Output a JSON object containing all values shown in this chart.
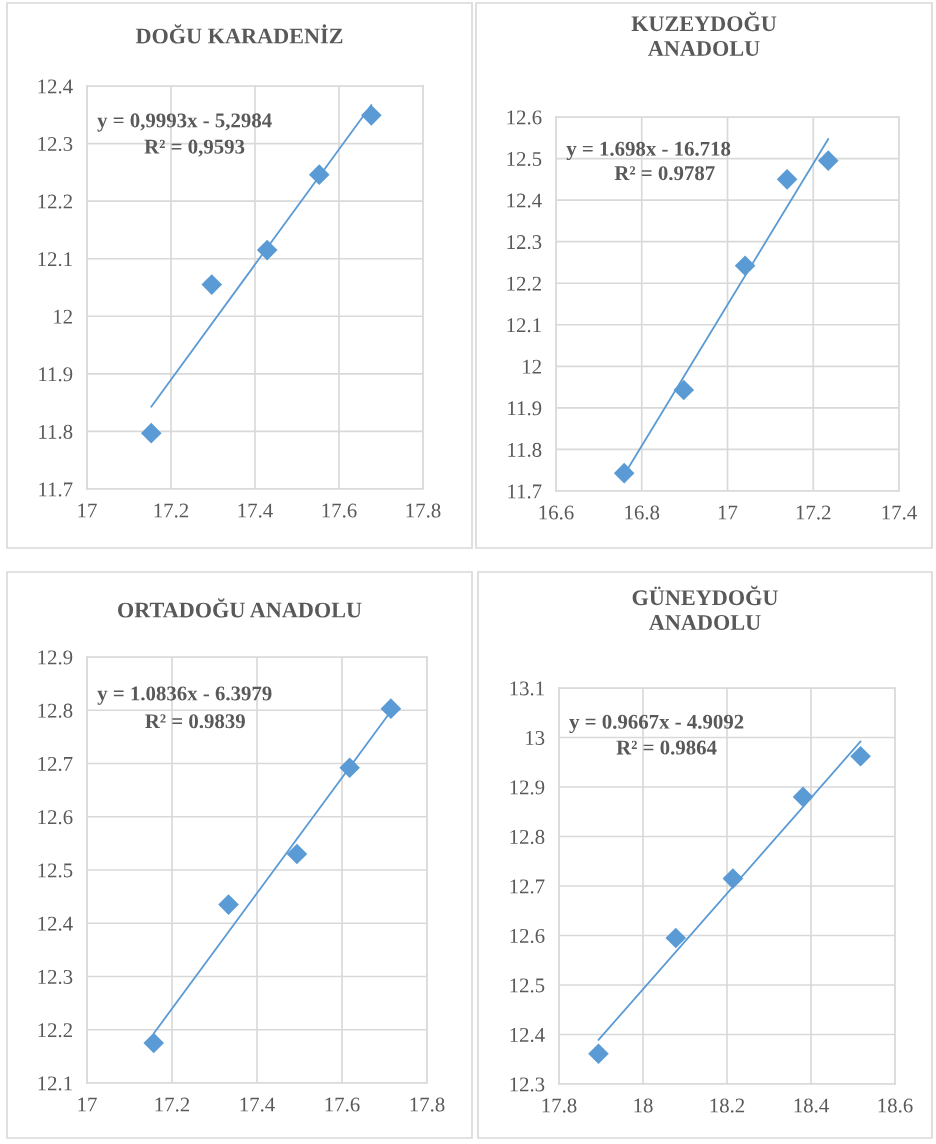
{
  "chart_data": [
    {
      "type": "scatter",
      "title": "DOĞU KARADENİZ",
      "xlim": [
        17,
        17.8
      ],
      "xticks": [
        17,
        17.2,
        17.4,
        17.6,
        17.8
      ],
      "ylim": [
        11.7,
        12.4
      ],
      "yticks": [
        11.7,
        11.8,
        11.9,
        12,
        12.1,
        12.2,
        12.3,
        12.4
      ],
      "grid": true,
      "annotations": [
        "y = 0,9993x - 5,2984",
        "R² = 0,9593"
      ],
      "series": [
        {
          "marker": "diamond",
          "color": "#5b9bd5",
          "x": [
            17.153,
            17.297,
            17.429,
            17.553,
            17.677
          ],
          "values": [
            11.797,
            12.055,
            12.115,
            12.246,
            12.349
          ]
        },
        {
          "type": "line",
          "marker": "none",
          "line_style": "solid",
          "color": "#5b9bd5",
          "x": [
            17.153,
            17.677
          ],
          "values": [
            11.843,
            12.367
          ]
        }
      ]
    },
    {
      "type": "scatter",
      "title": "KUZEYDOĞU\nANADOLU",
      "xlim": [
        16.6,
        17.4
      ],
      "xticks": [
        16.6,
        16.8,
        17,
        17.2,
        17.4
      ],
      "ylim": [
        11.7,
        12.6
      ],
      "yticks": [
        11.7,
        11.8,
        11.9,
        12,
        12.1,
        12.2,
        12.3,
        12.4,
        12.5,
        12.6
      ],
      "grid": true,
      "annotations": [
        "y = 1.698x - 16.718",
        "R² = 0.9787"
      ],
      "series": [
        {
          "marker": "diamond",
          "color": "#5b9bd5",
          "x": [
            16.759,
            16.898,
            17.041,
            17.139,
            17.235
          ],
          "values": [
            11.743,
            11.943,
            12.242,
            12.45,
            12.495
          ]
        },
        {
          "type": "line",
          "marker": "none",
          "line_style": "solid",
          "color": "#5b9bd5",
          "x": [
            16.759,
            17.235
          ],
          "values": [
            11.739,
            12.547
          ]
        }
      ]
    },
    {
      "type": "scatter",
      "title": "ORTADOĞU ANADOLU",
      "xlim": [
        17,
        17.8
      ],
      "xticks": [
        17,
        17.2,
        17.4,
        17.6,
        17.8
      ],
      "ylim": [
        12.1,
        12.9
      ],
      "yticks": [
        12.1,
        12.2,
        12.3,
        12.4,
        12.5,
        12.6,
        12.7,
        12.8,
        12.9
      ],
      "grid": true,
      "annotations": [
        "y = 1.0836x - 6.3979",
        "R² = 0.9839"
      ],
      "series": [
        {
          "marker": "diamond",
          "color": "#5b9bd5",
          "x": [
            17.157,
            17.333,
            17.494,
            17.618,
            17.715
          ],
          "values": [
            12.175,
            12.435,
            12.53,
            12.692,
            12.803
          ]
        },
        {
          "type": "line",
          "marker": "none",
          "line_style": "solid",
          "color": "#5b9bd5",
          "x": [
            17.157,
            17.715
          ],
          "values": [
            12.193,
            12.798
          ]
        }
      ]
    },
    {
      "type": "scatter",
      "title": "GÜNEYDOĞU\nANADOLU",
      "xlim": [
        17.8,
        18.6
      ],
      "xticks": [
        17.8,
        18,
        18.2,
        18.4,
        18.6
      ],
      "ylim": [
        12.3,
        13.1
      ],
      "yticks": [
        12.3,
        12.4,
        12.5,
        12.6,
        12.7,
        12.8,
        12.9,
        13,
        13.1
      ],
      "grid": true,
      "annotations": [
        "y = 0.9667x - 4.9092",
        "R² = 0.9864"
      ],
      "series": [
        {
          "marker": "diamond",
          "color": "#5b9bd5",
          "x": [
            17.894,
            18.078,
            18.214,
            18.381,
            18.518
          ],
          "values": [
            12.361,
            12.595,
            12.715,
            12.88,
            12.962
          ]
        },
        {
          "type": "line",
          "marker": "none",
          "line_style": "solid",
          "color": "#5b9bd5",
          "x": [
            17.894,
            18.518
          ],
          "values": [
            12.389,
            12.992
          ]
        }
      ]
    }
  ]
}
